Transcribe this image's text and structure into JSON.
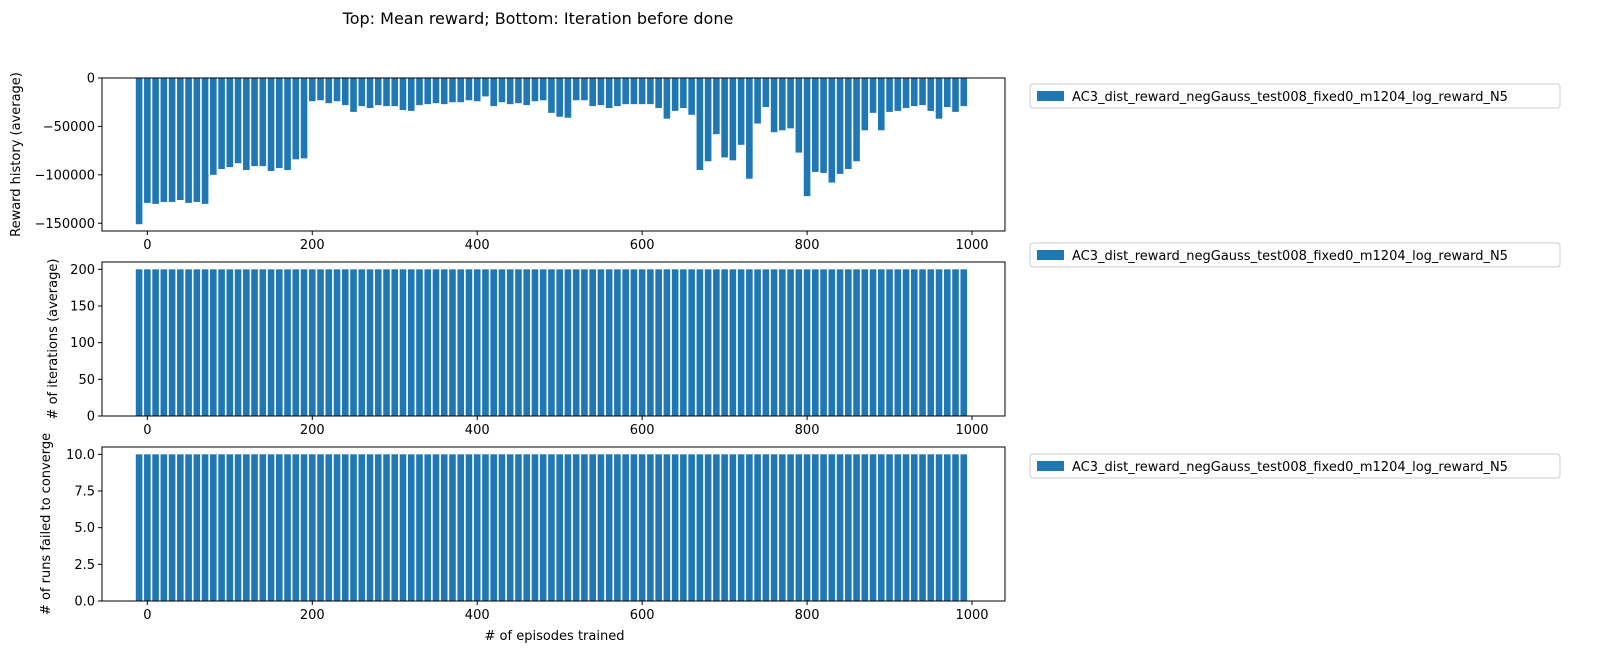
{
  "figure": {
    "title": "Top: Mean reward; Bottom: Iteration before done"
  },
  "chart_data": [
    {
      "type": "bar",
      "ylabel": "Reward history (average)",
      "xlabel": "",
      "xlim": [
        -55,
        1040
      ],
      "ylim": [
        -158000,
        0
      ],
      "xticks": [
        0,
        200,
        400,
        600,
        800,
        1000
      ],
      "yticks": [
        0,
        -50000,
        -100000,
        -150000
      ],
      "ytick_labels": [
        "0",
        "−50000",
        "−100000",
        "−150000"
      ],
      "legend": [
        "AC3_dist_reward_negGauss_test008_fixed0_m1204_log_reward_N5"
      ],
      "legend_position": "outside-right-top",
      "color": "#1f77b4",
      "bar_width": 8,
      "x": [
        -10,
        0,
        10,
        20,
        30,
        40,
        50,
        60,
        70,
        80,
        90,
        100,
        110,
        120,
        130,
        140,
        150,
        160,
        170,
        180,
        190,
        200,
        210,
        220,
        230,
        240,
        250,
        260,
        270,
        280,
        290,
        300,
        310,
        320,
        330,
        340,
        350,
        360,
        370,
        380,
        390,
        400,
        410,
        420,
        430,
        440,
        450,
        460,
        470,
        480,
        490,
        500,
        510,
        520,
        530,
        540,
        550,
        560,
        570,
        580,
        590,
        600,
        610,
        620,
        630,
        640,
        650,
        660,
        670,
        680,
        690,
        700,
        710,
        720,
        730,
        740,
        750,
        760,
        770,
        780,
        790,
        800,
        810,
        820,
        830,
        840,
        850,
        860,
        870,
        880,
        890,
        900,
        910,
        920,
        930,
        940,
        950,
        960,
        970,
        980,
        990
      ],
      "values": [
        -151000,
        -129000,
        -130000,
        -128000,
        -128000,
        -126000,
        -129000,
        -128000,
        -130000,
        -100000,
        -94000,
        -92000,
        -88000,
        -95000,
        -91000,
        -91000,
        -96000,
        -93000,
        -95000,
        -84000,
        -83000,
        -24000,
        -23000,
        -26000,
        -24000,
        -28000,
        -35000,
        -29000,
        -31000,
        -28000,
        -29000,
        -29000,
        -33000,
        -34000,
        -28000,
        -27000,
        -26000,
        -27000,
        -25000,
        -25000,
        -23000,
        -24000,
        -19000,
        -29000,
        -25000,
        -27000,
        -26000,
        -28000,
        -24000,
        -23000,
        -36000,
        -40000,
        -41000,
        -23000,
        -23000,
        -29000,
        -28000,
        -31000,
        -29000,
        -27000,
        -27000,
        -27000,
        -27000,
        -31000,
        -42000,
        -34000,
        -31000,
        -38000,
        -95000,
        -86000,
        -58000,
        -82000,
        -85000,
        -69000,
        -104000,
        -47000,
        -30000,
        -56000,
        -54000,
        -52000,
        -77000,
        -122000,
        -97000,
        -98000,
        -108000,
        -99000,
        -94000,
        -86000,
        -54000,
        -36000,
        -54000,
        -35000,
        -34000,
        -31000,
        -29000,
        -28000,
        -34000,
        -42000,
        -30000,
        -35000,
        -29000
      ]
    },
    {
      "type": "bar",
      "ylabel": "# of iterations (average)",
      "xlabel": "",
      "xlim": [
        -55,
        1040
      ],
      "ylim": [
        0,
        210
      ],
      "xticks": [
        0,
        200,
        400,
        600,
        800,
        1000
      ],
      "yticks": [
        0,
        50,
        100,
        150,
        200
      ],
      "ytick_labels": [
        "0",
        "50",
        "100",
        "150",
        "200"
      ],
      "legend": [
        "AC3_dist_reward_negGauss_test008_fixed0_m1204_log_reward_N5"
      ],
      "legend_position": "outside-right-top",
      "color": "#1f77b4",
      "bar_width": 8,
      "x_start": -10,
      "x_step": 10,
      "count": 101,
      "constant_value": 200
    },
    {
      "type": "bar",
      "ylabel": "# of runs failed to converge",
      "xlabel": "# of episodes trained",
      "xlim": [
        -55,
        1040
      ],
      "ylim": [
        0,
        10.5
      ],
      "xticks": [
        0,
        200,
        400,
        600,
        800,
        1000
      ],
      "yticks": [
        0,
        2.5,
        5.0,
        7.5,
        10.0
      ],
      "ytick_labels": [
        "0.0",
        "2.5",
        "5.0",
        "7.5",
        "10.0"
      ],
      "legend": [
        "AC3_dist_reward_negGauss_test008_fixed0_m1204_log_reward_N5"
      ],
      "legend_position": "outside-right-top",
      "color": "#1f77b4",
      "bar_width": 8,
      "x_start": -10,
      "x_step": 10,
      "count": 101,
      "constant_value": 10
    }
  ]
}
